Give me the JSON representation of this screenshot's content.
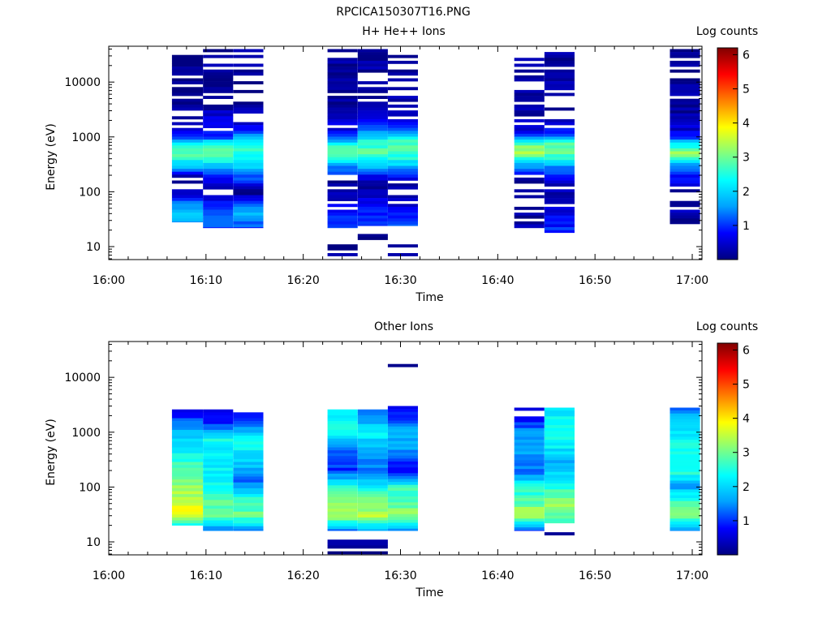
{
  "figure_title": "RPCICA150307T16.PNG",
  "colors": {
    "cmap": [
      "#000080",
      "#0000ff",
      "#00a0ff",
      "#00ffff",
      "#80ff80",
      "#ffff00",
      "#ff8000",
      "#ff0000",
      "#800000"
    ]
  },
  "chart_data": [
    {
      "type": "heatmap",
      "title": "H+ He++ Ions",
      "xlabel": "Time",
      "ylabel": "Energy (eV)",
      "colorbar_label": "Log counts",
      "x_ticks": [
        "16:00",
        "16:10",
        "16:20",
        "16:30",
        "16:40",
        "16:50",
        "17:00"
      ],
      "x_range_min": [
        0,
        61
      ],
      "y_ticks": [
        10,
        100,
        1000,
        10000
      ],
      "y_range_eV": [
        5.8,
        45000
      ],
      "y_scale": "log",
      "color_range": [
        0,
        6.2
      ],
      "colorbar_ticks": [
        1,
        2,
        3,
        4,
        5,
        6
      ],
      "columns": [
        {
          "t_min": [
            6.5,
            9.7
          ],
          "profile": [
            [
              28,
              1.6
            ],
            [
              40,
              1.8
            ],
            [
              60,
              1.3
            ],
            [
              100,
              0.4
            ],
            [
              180,
              0.1
            ],
            [
              260,
              1.5
            ],
            [
              400,
              2.6
            ],
            [
              600,
              3.0
            ],
            [
              900,
              1.3
            ],
            [
              1500,
              0.3
            ],
            [
              4000,
              0.1
            ],
            [
              40000,
              0.1
            ]
          ]
        },
        {
          "t_min": [
            9.7,
            12.8
          ],
          "profile": [
            [
              22,
              1.0
            ],
            [
              40,
              1.4
            ],
            [
              70,
              0.8
            ],
            [
              100,
              0.2
            ],
            [
              260,
              1.4
            ],
            [
              400,
              2.8
            ],
            [
              700,
              2.8
            ],
            [
              1000,
              1.0
            ],
            [
              3000,
              0.3
            ],
            [
              40000,
              0.1
            ]
          ]
        },
        {
          "t_min": [
            12.8,
            15.9
          ],
          "profile": [
            [
              22,
              1.0
            ],
            [
              40,
              1.8
            ],
            [
              70,
              0.6
            ],
            [
              100,
              0.1
            ],
            [
              260,
              1.8
            ],
            [
              400,
              2.4
            ],
            [
              600,
              2.6
            ],
            [
              900,
              1.8
            ],
            [
              2000,
              0.2
            ],
            [
              40000,
              0.1
            ]
          ]
        },
        {
          "t_min": [
            22.5,
            25.6
          ],
          "profile": [
            [
              22,
              1.1
            ],
            [
              40,
              1.0
            ],
            [
              70,
              0.4
            ],
            [
              150,
              0.2
            ],
            [
              300,
              1.6
            ],
            [
              450,
              2.9
            ],
            [
              700,
              2.6
            ],
            [
              1000,
              0.9
            ],
            [
              2500,
              0.2
            ],
            [
              40000,
              0.1
            ]
          ]
        },
        {
          "t_min": [
            25.6,
            28.7
          ],
          "profile": [
            [
              24,
              0.8
            ],
            [
              40,
              1.0
            ],
            [
              70,
              0.5
            ],
            [
              150,
              0.2
            ],
            [
              300,
              1.8
            ],
            [
              500,
              3.0
            ],
            [
              800,
              2.5
            ],
            [
              1500,
              1.0
            ],
            [
              2500,
              0.3
            ],
            [
              40000,
              0.1
            ]
          ]
        },
        {
          "t_min": [
            28.7,
            31.8
          ],
          "profile": [
            [
              24,
              1.2
            ],
            [
              40,
              0.9
            ],
            [
              70,
              0.3
            ],
            [
              150,
              0.2
            ],
            [
              300,
              1.9
            ],
            [
              500,
              2.8
            ],
            [
              800,
              2.8
            ],
            [
              1500,
              1.0
            ],
            [
              2500,
              0.3
            ],
            [
              40000,
              0.1
            ]
          ]
        },
        {
          "t_min": [
            41.7,
            44.8
          ],
          "profile": [
            [
              22,
              0.3
            ],
            [
              40,
              0.2
            ],
            [
              70,
              0.1
            ],
            [
              150,
              0.2
            ],
            [
              300,
              1.5
            ],
            [
              500,
              3.3
            ],
            [
              700,
              3.0
            ],
            [
              1100,
              1.0
            ],
            [
              1600,
              0.3
            ],
            [
              40000,
              0.1
            ]
          ]
        },
        {
          "t_min": [
            44.8,
            47.9
          ],
          "profile": [
            [
              18,
              1.0
            ],
            [
              40,
              0.6
            ],
            [
              70,
              0.2
            ],
            [
              150,
              0.3
            ],
            [
              300,
              1.6
            ],
            [
              500,
              3.0
            ],
            [
              800,
              2.7
            ],
            [
              1200,
              0.8
            ],
            [
              3000,
              0.3
            ],
            [
              40000,
              0.1
            ]
          ]
        },
        {
          "t_min": [
            57.7,
            60.8
          ],
          "profile": [
            [
              26,
              0.2
            ],
            [
              60,
              0.3
            ],
            [
              100,
              0.1
            ],
            [
              300,
              1.4
            ],
            [
              500,
              3.2
            ],
            [
              800,
              2.0
            ],
            [
              1000,
              0.8
            ],
            [
              2000,
              0.2
            ],
            [
              40000,
              0.1
            ]
          ]
        },
        {
          "t_min": [
            22.5,
            25.6
          ],
          "profile": [
            [
              6,
              0.1
            ],
            [
              11,
              0.1
            ]
          ]
        },
        {
          "t_min": [
            25.6,
            28.7
          ],
          "profile": [
            [
              13,
              0.1
            ],
            [
              17,
              0.1
            ]
          ]
        },
        {
          "t_min": [
            28.7,
            31.8
          ],
          "profile": [
            [
              6,
              0.1
            ],
            [
              11,
              0.1
            ]
          ]
        }
      ]
    },
    {
      "type": "heatmap",
      "title": "Other Ions",
      "xlabel": "Time",
      "ylabel": "Energy (eV)",
      "colorbar_label": "Log counts",
      "x_ticks": [
        "16:00",
        "16:10",
        "16:20",
        "16:30",
        "16:40",
        "16:50",
        "17:00"
      ],
      "x_range_min": [
        0,
        61
      ],
      "y_ticks": [
        10,
        100,
        1000,
        10000
      ],
      "y_range_eV": [
        5.8,
        45000
      ],
      "y_scale": "log",
      "color_range": [
        0,
        6.2
      ],
      "colorbar_ticks": [
        1,
        2,
        3,
        4,
        5,
        6
      ],
      "columns": [
        {
          "t_min": [
            6.5,
            9.7
          ],
          "profile": [
            [
              20,
              2.2
            ],
            [
              30,
              3.8
            ],
            [
              50,
              3.6
            ],
            [
              100,
              3.2
            ],
            [
              200,
              2.8
            ],
            [
              400,
              2.4
            ],
            [
              800,
              2.0
            ],
            [
              1500,
              1.3
            ],
            [
              2600,
              0.3
            ]
          ]
        },
        {
          "t_min": [
            9.7,
            12.8
          ],
          "profile": [
            [
              16,
              1.4
            ],
            [
              30,
              3.0
            ],
            [
              60,
              2.8
            ],
            [
              120,
              2.4
            ],
            [
              300,
              2.2
            ],
            [
              700,
              2.4
            ],
            [
              1200,
              1.2
            ],
            [
              2600,
              0.4
            ]
          ]
        },
        {
          "t_min": [
            12.8,
            15.9
          ],
          "profile": [
            [
              16,
              1.5
            ],
            [
              30,
              3.0
            ],
            [
              60,
              2.6
            ],
            [
              120,
              1.3
            ],
            [
              300,
              2.0
            ],
            [
              700,
              2.4
            ],
            [
              1200,
              1.6
            ],
            [
              2600,
              0.5
            ]
          ]
        },
        {
          "t_min": [
            22.5,
            25.6
          ],
          "profile": [
            [
              16,
              1.3
            ],
            [
              30,
              3.4
            ],
            [
              60,
              3.0
            ],
            [
              100,
              2.4
            ],
            [
              200,
              1.0
            ],
            [
              500,
              1.4
            ],
            [
              1000,
              2.4
            ],
            [
              2600,
              2.0
            ]
          ]
        },
        {
          "t_min": [
            25.6,
            28.7
          ],
          "profile": [
            [
              16,
              1.5
            ],
            [
              30,
              3.4
            ],
            [
              60,
              3.0
            ],
            [
              100,
              2.4
            ],
            [
              200,
              1.2
            ],
            [
              500,
              1.8
            ],
            [
              1000,
              2.2
            ],
            [
              2600,
              1.2
            ]
          ]
        },
        {
          "t_min": [
            28.7,
            31.8
          ],
          "profile": [
            [
              16,
              1.4
            ],
            [
              30,
              3.2
            ],
            [
              60,
              2.8
            ],
            [
              100,
              2.6
            ],
            [
              200,
              0.6
            ],
            [
              500,
              1.6
            ],
            [
              1000,
              1.6
            ],
            [
              3000,
              0.5
            ]
          ]
        },
        {
          "t_min": [
            41.7,
            44.8
          ],
          "profile": [
            [
              16,
              1.0
            ],
            [
              30,
              3.4
            ],
            [
              60,
              2.8
            ],
            [
              100,
              2.4
            ],
            [
              200,
              1.2
            ],
            [
              500,
              1.8
            ],
            [
              1000,
              1.4
            ],
            [
              2800,
              0.3
            ]
          ]
        },
        {
          "t_min": [
            44.8,
            47.9
          ],
          "profile": [
            [
              22,
              2.6
            ],
            [
              40,
              3.3
            ],
            [
              80,
              2.8
            ],
            [
              150,
              2.2
            ],
            [
              300,
              1.6
            ],
            [
              600,
              2.3
            ],
            [
              1200,
              2.6
            ],
            [
              2800,
              2.0
            ]
          ]
        },
        {
          "t_min": [
            57.7,
            60.8
          ],
          "profile": [
            [
              16,
              1.5
            ],
            [
              30,
              3.0
            ],
            [
              60,
              2.6
            ],
            [
              100,
              1.5
            ],
            [
              200,
              2.6
            ],
            [
              500,
              2.4
            ],
            [
              1000,
              2.2
            ],
            [
              2800,
              1.3
            ]
          ]
        },
        {
          "t_min": [
            22.5,
            28.7
          ],
          "profile": [
            [
              6,
              0.1
            ],
            [
              11,
              0.1
            ]
          ]
        },
        {
          "t_min": [
            44.8,
            47.9
          ],
          "profile": [
            [
              11,
              0.2
            ],
            [
              15,
              0.2
            ]
          ]
        },
        {
          "t_min": [
            28.7,
            31.8
          ],
          "profile": [
            [
              15500,
              0.1
            ],
            [
              17500,
              0.1
            ]
          ]
        }
      ]
    }
  ]
}
